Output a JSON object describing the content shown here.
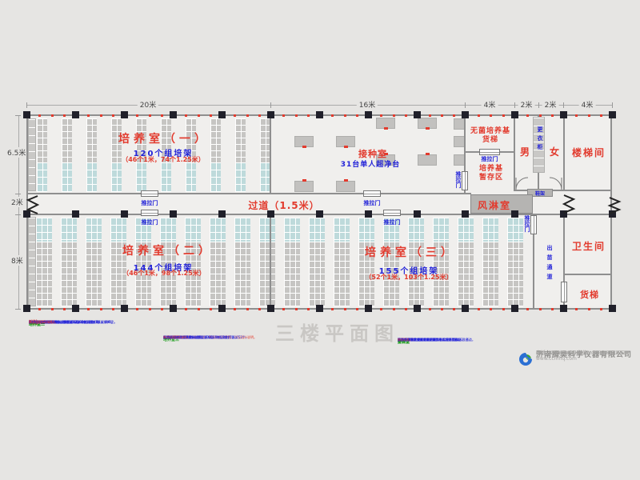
{
  "title": "三楼平面图",
  "dimensions": {
    "top": [
      "20米",
      "16米",
      "4米",
      "2米",
      "2米",
      "4米"
    ],
    "left": [
      "6.5米",
      "2米",
      "8米"
    ]
  },
  "rooms": {
    "culture1": {
      "name": "培养室（一）",
      "racks": "120个组培架",
      "detail": "（46个1米，74个1.25米）"
    },
    "culture2": {
      "name": "培养室（二）",
      "racks": "144个组培架",
      "detail": "（46个1米，98个1.25米）"
    },
    "culture3": {
      "name": "培养室（三）",
      "racks": "155个组培架",
      "detail": "（52个1米，103个1.25米）"
    },
    "inoculation": {
      "name": "接种室",
      "detail": "31台单人超净台"
    },
    "sterile_elevator": {
      "line1": "无菌培养基",
      "line2": "货梯"
    },
    "media_storage": {
      "line1": "培养基",
      "line2": "暂存区"
    },
    "male": "男",
    "female": "女",
    "locker": "更衣柜",
    "stairwell": "楼梯间",
    "air_shower": "风淋室",
    "corridor": "过道（1.5米）",
    "shoe_rack": "鞋架",
    "seedling_channel": "出苗通道",
    "toilet": "卫生间",
    "freight_elevator": "货梯"
  },
  "labels": {
    "sliding_door": "推拉门"
  },
  "notes": {
    "title": "附注",
    "blocks": [
      {
        "header": "培养室一",
        "lines": [
          [
            [
              "b",
              "本室长20米、宽6.5米，放置组培架120个，其中1米架46个，"
            ],
            [
              "r",
              "1.25米架74个。"
            ]
          ],
          [
            [
              "b",
              "1米组培架规格：1米×0.5米×2.2米（长×宽×高），共6层，"
            ],
            [
              "r",
              "层间距0.3米"
            ],
            [
              "b",
              "，每层2支灯管。"
            ]
          ],
          [
            [
              "b",
              "1.25米组培架规格同上。"
            ]
          ],
          [
            [
              "b",
              "组培架间过道宽0.6米，靠墙留0.4米检修通道。"
            ]
          ],
          [
            [
              "b",
              "照明采用时控开关控制，"
            ],
            [
              "r",
              "每天光照12小时。"
            ]
          ]
        ]
      },
      {
        "header": "培养室二",
        "lines": [
          [
            [
              "b",
              "本室长20米、宽8米，放置组培架144个，其中1米架46个，"
            ],
            [
              "r",
              "1.25米架98个。"
            ]
          ],
          [
            [
              "b",
              "组培架规格与培养室一相同，共6层，每层2支灯管，"
            ],
            [
              "r",
              "培养瓶按500ml计。"
            ]
          ],
          [
            [
              "b",
              "组培架间过道宽0.6米，靠墙留0.4米检修通道。"
            ]
          ],
          [
            [
              "b",
              "空调按面积配置，"
            ],
            [
              "r",
              "数量详见设计说明。"
            ]
          ],
          [
            [
              "b",
              "照明采用时控开关控制，"
            ],
            [
              "r",
              "每天光照12小时。"
            ]
          ]
        ]
      },
      {
        "bullet": "■ 各培养室均配置空调与风机，数量按面积配置，详见设计说明。",
        "header": "培养室三",
        "lines": [
          [
            [
              "b",
              "本室长21米、宽8米，放置组培架155个，其中1米架52个，"
            ],
            [
              "r",
              "1.25米架103个。"
            ]
          ],
          [
            [
              "b",
              "组培架规格与培养室一相同，共6层，每层2支灯管。"
            ]
          ],
          [
            [
              "b",
              "组培架间过道宽0.6米，靠墙留0.4米检修通道。"
            ]
          ],
          [
            [
              "b",
              "出苗经出苗通道由货梯运出。"
            ]
          ],
          [
            [
              "b",
              "照明采用时控开关控制，"
            ],
            [
              "r",
              "每天光照12小时。"
            ]
          ]
        ]
      },
      {
        "header": "更衣室",
        "lines": [
          [
            [
              "b",
              "进入接种室前须在更衣室更换工作服、换鞋。"
            ]
          ],
          [
            [
              "b",
              "更衣柜置于男女更衣室中间，鞋架设在门口。"
            ]
          ]
        ]
      },
      {
        "header": "接种室",
        "lines": [
          [
            [
              "b",
              "本室长16米、宽6.5米，放置单人超净工作台31台，"
            ],
            [
              "r",
              "按两排布置。"
            ]
          ],
          [
            [
              "b",
              "超净工作台之间留0.8米操作通道，中间留1米主通道。"
            ]
          ],
          [
            [
              "b",
              "无菌培养基由货梯运入，暂存于培养基暂存区。"
            ]
          ],
          [
            [
              "b",
              "人员经风淋室进入培养区。"
            ]
          ],
          [
            [
              "b",
              "接种室配置紫外灯定时消毒，"
            ],
            [
              "r",
              "每天2次。"
            ]
          ]
        ]
      }
    ]
  },
  "company": {
    "name": "济南腾昊科学仪器有限公司",
    "phone": "电话：0531-83790617，15866611552",
    "qq": "QQ：57437467　微信：15866611552",
    "web": "网址：www.zupei17.com，www.ccmhq.com"
  }
}
